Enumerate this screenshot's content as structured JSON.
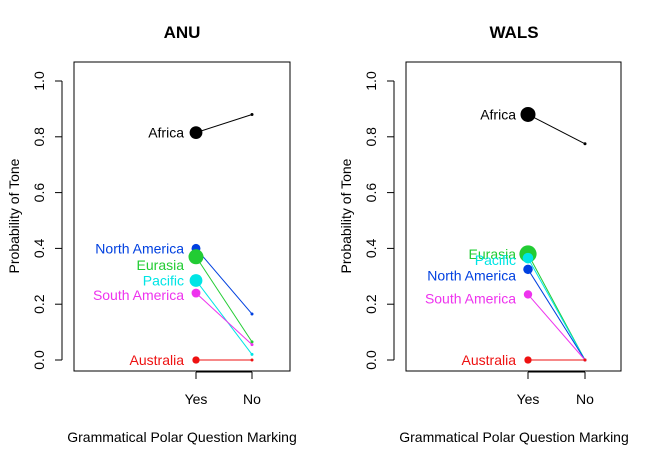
{
  "chart_data": [
    {
      "type": "line",
      "title": "ANU",
      "xlabel": "Grammatical Polar Question Marking",
      "ylabel": "Probability of Tone",
      "categories": [
        "Yes",
        "No"
      ],
      "ylim": [
        0,
        1
      ],
      "yticks": [
        "0.0",
        "0.2",
        "0.4",
        "0.6",
        "0.8",
        "1.0"
      ],
      "series": [
        {
          "name": "Africa",
          "color": "#000000",
          "values": [
            0.815,
            0.88
          ],
          "weight": 0.8
        },
        {
          "name": "North America",
          "color": "#0040e0",
          "values": [
            0.4,
            0.165
          ],
          "weight": 0.45
        },
        {
          "name": "Eurasia",
          "color": "#22cc33",
          "values": [
            0.37,
            0.065
          ],
          "weight": 1.0
        },
        {
          "name": "Pacific",
          "color": "#00e5e5",
          "values": [
            0.285,
            0.02
          ],
          "weight": 0.8
        },
        {
          "name": "South America",
          "color": "#ee33ee",
          "values": [
            0.24,
            0.055
          ],
          "weight": 0.45
        },
        {
          "name": "Australia",
          "color": "#ee1111",
          "values": [
            0.0,
            0.0
          ],
          "weight": 0.3
        }
      ]
    },
    {
      "type": "line",
      "title": "WALS",
      "xlabel": "Grammatical Polar Question Marking",
      "ylabel": "Probability of Tone",
      "categories": [
        "Yes",
        "No"
      ],
      "ylim": [
        0,
        1
      ],
      "yticks": [
        "0.0",
        "0.2",
        "0.4",
        "0.6",
        "0.8",
        "1.0"
      ],
      "series": [
        {
          "name": "Africa",
          "color": "#000000",
          "values": [
            0.88,
            0.775
          ],
          "weight": 1.0
        },
        {
          "name": "Eurasia",
          "color": "#22cc33",
          "values": [
            0.38,
            0.0
          ],
          "weight": 1.2
        },
        {
          "name": "Pacific",
          "color": "#00e5e5",
          "values": [
            0.365,
            0.0
          ],
          "weight": 0.6
        },
        {
          "name": "North America",
          "color": "#0040e0",
          "values": [
            0.325,
            0.0
          ],
          "weight": 0.5
        },
        {
          "name": "South America",
          "color": "#ee33ee",
          "values": [
            0.235,
            0.0
          ],
          "weight": 0.4
        },
        {
          "name": "Australia",
          "color": "#ee1111",
          "values": [
            0.0,
            0.0
          ],
          "weight": 0.3
        }
      ]
    }
  ]
}
